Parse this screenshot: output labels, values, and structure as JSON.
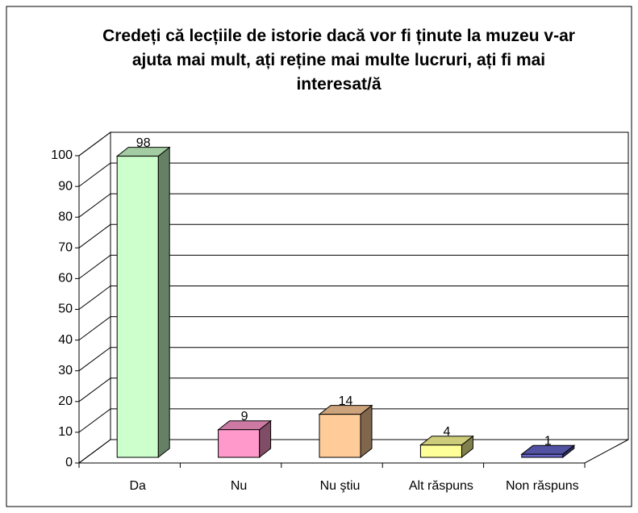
{
  "chart_data": {
    "type": "bar3d",
    "title": "Credeți că lecțiile de istorie dacă vor fi ținute la muzeu v-ar ajuta mai mult, ați reține mai multe lucruri, ați fi mai interesat/ă",
    "categories": [
      "Da",
      "Nu",
      "Nu ştiu",
      "Alt răspuns",
      "Non răspuns"
    ],
    "values": [
      98,
      9,
      14,
      4,
      1
    ],
    "colors": [
      "#ccffcc",
      "#ff99cc",
      "#ffcc99",
      "#ffff99",
      "#6666cc"
    ],
    "ylim": [
      0,
      100
    ],
    "yticks": [
      0,
      10,
      20,
      30,
      40,
      50,
      60,
      70,
      80,
      90,
      100
    ],
    "grid": true
  }
}
